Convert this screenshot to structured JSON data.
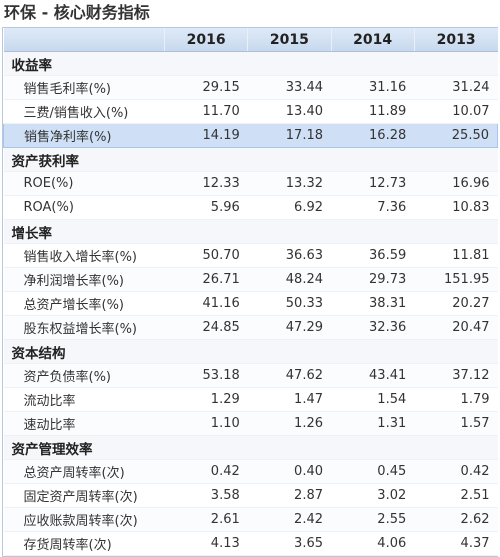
{
  "title": "环保 - 核心财务指标",
  "columns": [
    "",
    "2016",
    "2015",
    "2014",
    "2013"
  ],
  "highlight_color": "#cfe0f6",
  "sections": [
    {
      "name": "收益率",
      "rows": [
        {
          "label": "销售毛利率(%)",
          "values": [
            "29.15",
            "33.44",
            "31.16",
            "31.24"
          ],
          "highlighted": false
        },
        {
          "label": "三费/销售收入(%)",
          "values": [
            "11.70",
            "13.40",
            "11.89",
            "10.07"
          ],
          "highlighted": false
        },
        {
          "label": "销售净利率(%)",
          "values": [
            "14.19",
            "17.18",
            "16.28",
            "25.50"
          ],
          "highlighted": true
        }
      ]
    },
    {
      "name": "资产获利率",
      "rows": [
        {
          "label": "ROE(%)",
          "values": [
            "12.33",
            "13.32",
            "12.73",
            "16.96"
          ],
          "highlighted": false
        },
        {
          "label": "ROA(%)",
          "values": [
            "5.96",
            "6.92",
            "7.36",
            "10.83"
          ],
          "highlighted": false
        }
      ]
    },
    {
      "name": "增长率",
      "rows": [
        {
          "label": "销售收入增长率(%)",
          "values": [
            "50.70",
            "36.63",
            "36.59",
            "11.81"
          ],
          "highlighted": false
        },
        {
          "label": "净利润增长率(%)",
          "values": [
            "26.71",
            "48.24",
            "29.73",
            "151.95"
          ],
          "highlighted": false
        },
        {
          "label": "总资产增长率(%)",
          "values": [
            "41.16",
            "50.33",
            "38.31",
            "20.27"
          ],
          "highlighted": false
        },
        {
          "label": "股东权益增长率(%)",
          "values": [
            "24.85",
            "47.29",
            "32.36",
            "20.47"
          ],
          "highlighted": false
        }
      ]
    },
    {
      "name": "资本结构",
      "rows": [
        {
          "label": "资产负债率(%)",
          "values": [
            "53.18",
            "47.62",
            "43.41",
            "37.12"
          ],
          "highlighted": false
        },
        {
          "label": "流动比率",
          "values": [
            "1.29",
            "1.47",
            "1.54",
            "1.79"
          ],
          "highlighted": false
        },
        {
          "label": "速动比率",
          "values": [
            "1.10",
            "1.26",
            "1.31",
            "1.57"
          ],
          "highlighted": false
        }
      ]
    },
    {
      "name": "资产管理效率",
      "rows": [
        {
          "label": "总资产周转率(次)",
          "values": [
            "0.42",
            "0.40",
            "0.45",
            "0.42"
          ],
          "highlighted": false
        },
        {
          "label": "固定资产周转率(次)",
          "values": [
            "3.58",
            "2.87",
            "3.02",
            "2.51"
          ],
          "highlighted": false
        },
        {
          "label": "应收账款周转率(次)",
          "values": [
            "2.61",
            "2.42",
            "2.55",
            "2.62"
          ],
          "highlighted": false
        },
        {
          "label": "存货周转率(次)",
          "values": [
            "4.13",
            "3.65",
            "4.06",
            "4.37"
          ],
          "highlighted": false
        }
      ]
    }
  ]
}
